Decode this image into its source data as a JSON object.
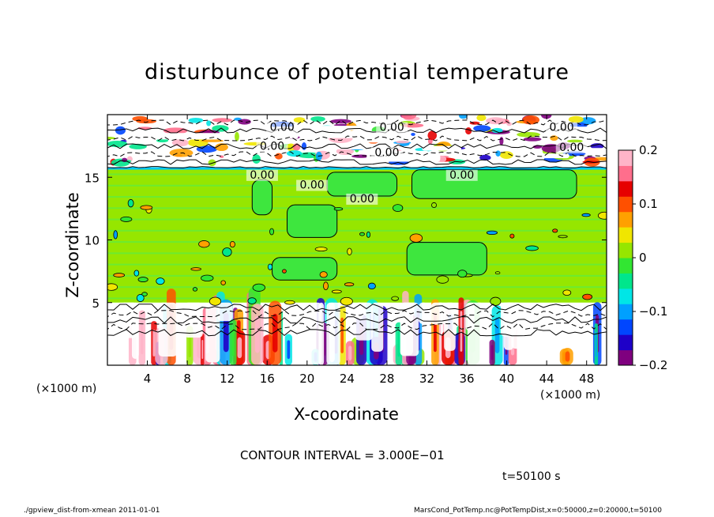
{
  "chart_data": {
    "type": "heatmap",
    "title": "disturbunce of potential temperature",
    "xlabel": "X-coordinate",
    "ylabel": "Z-coordinate",
    "x_unit_label": "(×1000 m)",
    "x_unit_label_right": "(×1000 m)",
    "xlim": [
      0,
      50
    ],
    "ylim": [
      0,
      20
    ],
    "x_ticks": [
      4,
      8,
      12,
      16,
      20,
      24,
      28,
      32,
      36,
      40,
      44,
      48
    ],
    "x_tick_labels": [
      "4",
      "8",
      "12",
      "16",
      "20",
      "24",
      "28",
      "32",
      "36",
      "40",
      "44",
      "48"
    ],
    "y_ticks": [
      5,
      10,
      15
    ],
    "y_tick_labels": [
      "5",
      "10",
      "15"
    ],
    "colorbar": {
      "range": [
        -0.2,
        0.2
      ],
      "tick_values": [
        0.2,
        0.1,
        0,
        -0.1,
        -0.2
      ],
      "tick_labels": [
        "0.2",
        "0.1",
        "0",
        "−0.1",
        "−0.2"
      ],
      "colors": [
        "#7f007f",
        "#1e00c8",
        "#0046ff",
        "#00a0ff",
        "#00e6e6",
        "#00e68c",
        "#32e632",
        "#96e600",
        "#f0e600",
        "#ffa000",
        "#ff5000",
        "#e60000",
        "#ff6e8c",
        "#ffb4c8"
      ]
    },
    "regions": [
      {
        "z_range": [
          0,
          5
        ],
        "description": "strong positive and negative disturbance plumes"
      },
      {
        "z_range": [
          5,
          15.8
        ],
        "value": 0
      },
      {
        "z_range": [
          15.8,
          20
        ],
        "description": "mixed disturbance band"
      }
    ],
    "contour_labels": [
      {
        "x": 15.5,
        "z": 14.9,
        "text": "0.00"
      },
      {
        "x": 17.5,
        "z": 18.7,
        "text": "0.00"
      },
      {
        "x": 28.5,
        "z": 18.7,
        "text": "0.00"
      },
      {
        "x": 16.5,
        "z": 17.2,
        "text": "0.00"
      },
      {
        "x": 28.0,
        "z": 16.7,
        "text": "0.00"
      },
      {
        "x": 20.5,
        "z": 14.1,
        "text": "0.00"
      },
      {
        "x": 25.5,
        "z": 13.0,
        "text": "0.00"
      },
      {
        "x": 35.5,
        "z": 14.9,
        "text": "0.00"
      },
      {
        "x": 45.5,
        "z": 18.7,
        "text": "0.00"
      },
      {
        "x": 46.5,
        "z": 17.1,
        "text": "0.00"
      }
    ],
    "contour_interval_text": "CONTOUR INTERVAL = 3.000E−01"
  },
  "labels": {
    "time": "t=50100 s",
    "footer_left": "./gpview_dist-from-xmean   2011-01-01",
    "footer_right": "MarsCond_PotTemp.nc@PotTempDist,x=0:50000,z=0:20000,t=50100"
  }
}
